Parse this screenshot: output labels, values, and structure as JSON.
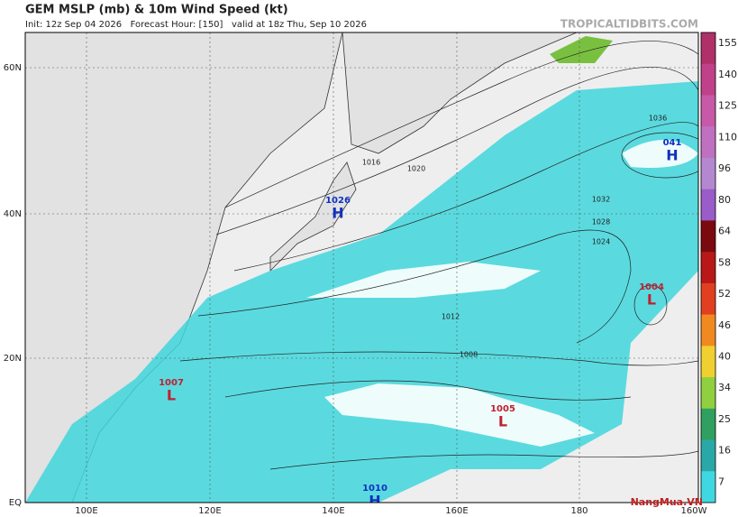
{
  "header": {
    "title": "GEM MSLP (mb) & 10m Wind Speed (kt)",
    "subtitle": "Init: 12z Sep 04 2026   Forecast Hour: [150]   valid at 18z Thu, Sep 10 2026",
    "site": "TROPICALTIDBITS.COM"
  },
  "map": {
    "lat_labels": [
      "60N",
      "40N",
      "20N",
      "EQ"
    ],
    "lon_labels": [
      "100E",
      "120E",
      "140E",
      "160E",
      "180",
      "160W"
    ],
    "centers": [
      {
        "kind": "H",
        "pressure": "1026"
      },
      {
        "kind": "H",
        "pressure": "041"
      },
      {
        "kind": "L",
        "pressure": "1004"
      },
      {
        "kind": "L",
        "pressure": "1007"
      },
      {
        "kind": "L",
        "pressure": "1005"
      },
      {
        "kind": "H",
        "pressure": "1010"
      }
    ],
    "isobar_labels": [
      "1016",
      "1020",
      "1012",
      "1008",
      "1024",
      "1028",
      "1032",
      "1036"
    ]
  },
  "colorbar": {
    "labels": [
      "155",
      "140",
      "125",
      "110",
      "96",
      "80",
      "64",
      "58",
      "52",
      "46",
      "40",
      "34",
      "25",
      "16",
      "7"
    ],
    "colors": [
      "#b0306a",
      "#c0408a",
      "#c858a8",
      "#c070c0",
      "#b488d0",
      "#9a5cc8",
      "#7a0a10",
      "#b81818",
      "#e04020",
      "#f08a20",
      "#f0d030",
      "#90d040",
      "#30a060",
      "#2aa8a8",
      "#40d8e0"
    ]
  },
  "watermark": "NangMua.VN"
}
